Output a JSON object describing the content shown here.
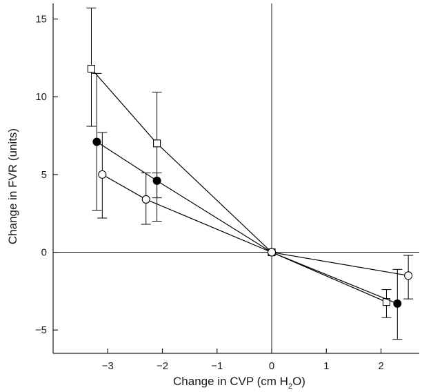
{
  "chart_data": {
    "type": "scatter",
    "title": "",
    "xlabel": "Change in CVP (cm H2O)",
    "xlabel_parts": {
      "pre": "Change in CVP (cm H",
      "sub": "2",
      "post": "O)"
    },
    "ylabel": "Change in FVR (units)",
    "xlim": [
      -4,
      2.7
    ],
    "ylim": [
      -6.5,
      16
    ],
    "xticks": [
      -3,
      -2,
      -1,
      0,
      1,
      2
    ],
    "xtick_labels": [
      "−3",
      "−2",
      "−1",
      "0",
      "1",
      "2"
    ],
    "yticks": [
      -5,
      0,
      5,
      10,
      15
    ],
    "ytick_labels": [
      "−5",
      "0",
      "5",
      "10",
      "15"
    ],
    "reference_lines": {
      "x": 0,
      "y": 0
    },
    "grid": false,
    "legend": "none",
    "series": [
      {
        "marker": "open-square",
        "color": "#000000",
        "points": [
          {
            "x": -3.3,
            "y": 11.8,
            "err_low": 8.1,
            "err_high": 15.7
          },
          {
            "x": -2.1,
            "y": 7.0,
            "err_low": 3.5,
            "err_high": 10.3
          },
          {
            "x": 0,
            "y": 0,
            "err_low": null,
            "err_high": null
          },
          {
            "x": 2.1,
            "y": -3.2,
            "err_low": -4.2,
            "err_high": -2.4
          }
        ]
      },
      {
        "marker": "filled-circle",
        "color": "#000000",
        "points": [
          {
            "x": -3.2,
            "y": 7.1,
            "err_low": 2.7,
            "err_high": 11.5
          },
          {
            "x": -2.1,
            "y": 4.6,
            "err_low": 2.0,
            "err_high": 5.1
          },
          {
            "x": 0,
            "y": 0,
            "err_low": null,
            "err_high": null
          },
          {
            "x": 2.3,
            "y": -3.3,
            "err_low": -5.6,
            "err_high": -1.1
          }
        ]
      },
      {
        "marker": "open-circle",
        "color": "#000000",
        "points": [
          {
            "x": -3.1,
            "y": 5.0,
            "err_low": 2.2,
            "err_high": 7.7
          },
          {
            "x": -2.3,
            "y": 3.4,
            "err_low": 1.8,
            "err_high": 5.1
          },
          {
            "x": 0,
            "y": 0,
            "err_low": null,
            "err_high": null
          },
          {
            "x": 2.5,
            "y": -1.5,
            "err_low": -3.0,
            "err_high": -0.2
          }
        ]
      }
    ]
  }
}
